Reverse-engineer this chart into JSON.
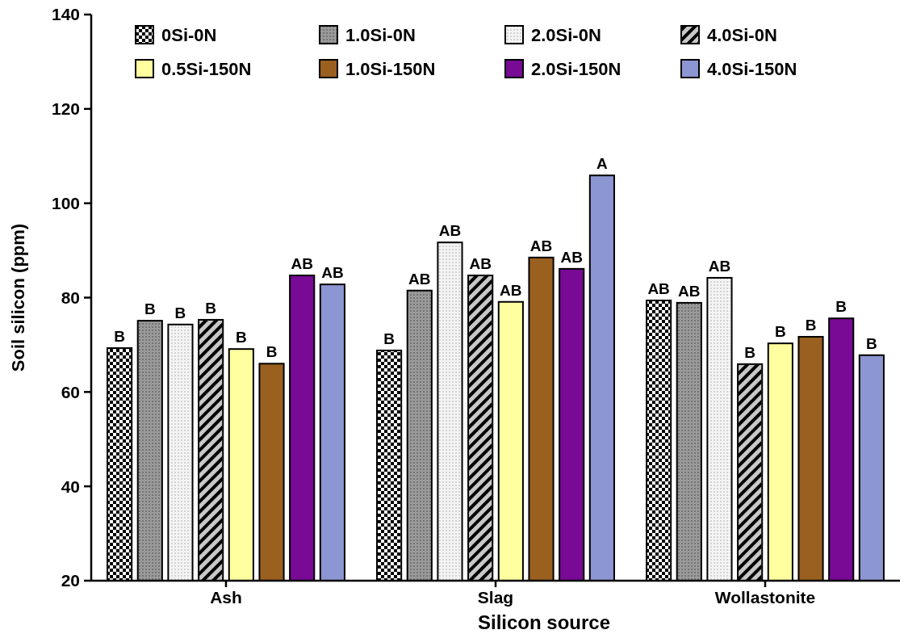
{
  "chart_data": {
    "type": "bar",
    "xlabel": "Silicon source",
    "ylabel": "Soil silicon (ppm)",
    "categories": [
      "Ash",
      "Slag",
      "Wollastonite"
    ],
    "ylim": [
      20,
      140
    ],
    "yticks": [
      20,
      40,
      60,
      80,
      100,
      120,
      140
    ],
    "legend": "top",
    "series": [
      {
        "name": "0Si-0N",
        "color": "#ffffff",
        "values": [
          69.3,
          68.8,
          79.4
        ],
        "value_labels": [
          "B",
          "B",
          "AB"
        ]
      },
      {
        "name": "1.0Si-0N",
        "color": "#9a9a9a",
        "values": [
          75.1,
          81.5,
          78.9
        ],
        "value_labels": [
          "B",
          "AB",
          "AB"
        ]
      },
      {
        "name": "2.0Si-0N",
        "color": "#f4f4f4",
        "values": [
          74.3,
          91.7,
          84.2
        ],
        "value_labels": [
          "B",
          "AB",
          "AB"
        ]
      },
      {
        "name": "4.0Si-0N",
        "color": "#c8c8c8",
        "values": [
          75.3,
          84.7,
          65.9
        ],
        "value_labels": [
          "B",
          "AB",
          "B"
        ]
      },
      {
        "name": "0.5Si-150N",
        "color": "#ffffa0",
        "values": [
          69.1,
          79.1,
          70.3
        ],
        "value_labels": [
          "B",
          "AB",
          "B"
        ]
      },
      {
        "name": "1.0Si-150N",
        "color": "#9a6020",
        "values": [
          66.0,
          88.5,
          71.7
        ],
        "value_labels": [
          "B",
          "AB",
          "B"
        ]
      },
      {
        "name": "2.0Si-150N",
        "color": "#780a96",
        "values": [
          84.7,
          86.1,
          75.6
        ],
        "value_labels": [
          "AB",
          "AB",
          "B"
        ]
      },
      {
        "name": "4.0Si-150N",
        "color": "#8c96d2",
        "values": [
          82.8,
          105.9,
          67.8
        ],
        "value_labels": [
          "AB",
          "A",
          "B"
        ]
      }
    ]
  }
}
